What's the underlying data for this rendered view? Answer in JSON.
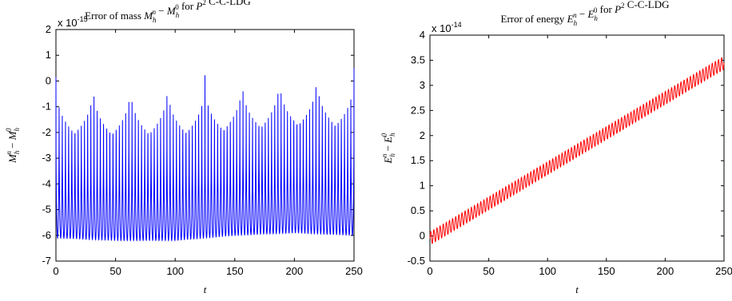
{
  "chart_data": [
    {
      "type": "line",
      "title": "Error of mass M_h^n − M_h^0 for P^2 C-C-LDG",
      "xlabel": "t",
      "ylabel": "M_h^n − M_h^0",
      "y_multiplier": "x 10^-15",
      "xlim": [
        0,
        250
      ],
      "ylim": [
        -7,
        2
      ],
      "xticks": [
        "0",
        "50",
        "100",
        "150",
        "200",
        "250"
      ],
      "yticks": [
        "-7",
        "-6",
        "-5",
        "-4",
        "-3",
        "-2",
        "-1",
        "0",
        "1",
        "2"
      ],
      "grid": false,
      "series": [
        {
          "color": "#0000ff",
          "oscillation_count": 94,
          "x_range": [
            0,
            250
          ],
          "upper_envelope": [
            [
              0,
              0.15
            ],
            [
              50,
              0.1
            ],
            [
              100,
              0.15
            ],
            [
              150,
              0.3
            ],
            [
              200,
              0.5
            ],
            [
              250,
              0.5
            ]
          ],
          "lower_envelope": [
            [
              0,
              -6.1
            ],
            [
              50,
              -6.2
            ],
            [
              100,
              -6.2
            ],
            [
              150,
              -6.0
            ],
            [
              200,
              -5.9
            ],
            [
              250,
              -6.0
            ]
          ]
        }
      ]
    },
    {
      "type": "line",
      "title": "Error of energy E_h^n − E_h^0 for P^2 C-C-LDG",
      "xlabel": "t",
      "ylabel": "E_h^n − E_h^0",
      "y_multiplier": "x 10^-14",
      "xlim": [
        0,
        250
      ],
      "ylim": [
        -0.5,
        4
      ],
      "xticks": [
        "0",
        "50",
        "100",
        "150",
        "200",
        "250"
      ],
      "yticks": [
        "-0.5",
        "0",
        "0.5",
        "1",
        "1.5",
        "2",
        "2.5",
        "3",
        "3.5",
        "4"
      ],
      "grid": false,
      "series": [
        {
          "color": "#ff0000",
          "oscillation_count": 94,
          "trend_start": [
            0,
            -0.05
          ],
          "trend_end": [
            250,
            3.45
          ],
          "amplitude": 0.13
        }
      ]
    }
  ]
}
